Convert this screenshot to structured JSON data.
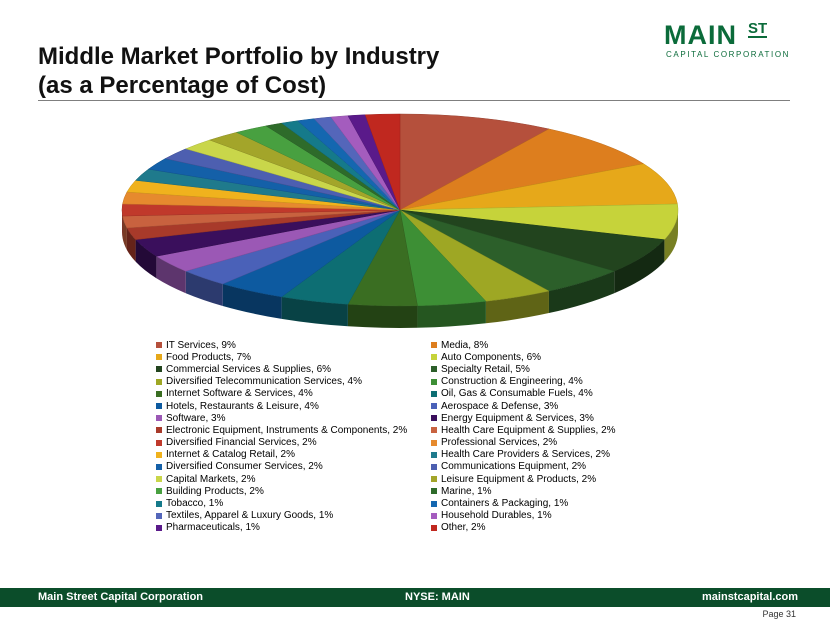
{
  "header": {
    "title_line1": "Middle Market Portfolio by Industry",
    "title_line2": "(as a Percentage of Cost)"
  },
  "logo": {
    "main": "MAIN",
    "superscript": "ST",
    "subtitle": "CAPITAL CORPORATION",
    "color": "#0b6b3a"
  },
  "footer": {
    "left": "Main Street Capital Corporation",
    "center": "NYSE: MAIN",
    "right": "mainstcapital.com",
    "background": "#0b4d2a"
  },
  "page_label": "Page  31",
  "chart_data": {
    "type": "pie",
    "style": "3D tilted pie, no title, legend below in two columns",
    "legend_position": "bottom",
    "slices": [
      {
        "label": "IT Services, 9%",
        "value": 9,
        "color": "#b5503c"
      },
      {
        "label": "Media, 8%",
        "value": 8,
        "color": "#dd7e1e"
      },
      {
        "label": "Food Products, 7%",
        "value": 7,
        "color": "#e6a81a"
      },
      {
        "label": "Auto Components, 6%",
        "value": 6,
        "color": "#c6d33a"
      },
      {
        "label": "Commercial Services & Supplies, 6%",
        "value": 6,
        "color": "#22441e"
      },
      {
        "label": "Specialty Retail, 5%",
        "value": 5,
        "color": "#2c5f2a"
      },
      {
        "label": "Diversified Telecommunication Services, 4%",
        "value": 4,
        "color": "#9ea724"
      },
      {
        "label": "Construction & Engineering, 4%",
        "value": 4,
        "color": "#3d8f35"
      },
      {
        "label": "Internet Software & Services, 4%",
        "value": 4,
        "color": "#3a6e22"
      },
      {
        "label": "Oil, Gas & Consumable Fuels, 4%",
        "value": 4,
        "color": "#0d6e73"
      },
      {
        "label": "Hotels, Restaurants & Leisure, 4%",
        "value": 4,
        "color": "#0d5aa0"
      },
      {
        "label": "Aerospace & Defense, 3%",
        "value": 3,
        "color": "#4a61b8"
      },
      {
        "label": "Software, 3%",
        "value": 3,
        "color": "#9b58b5"
      },
      {
        "label": "Energy Equipment & Services, 3%",
        "value": 3,
        "color": "#3a0f5c"
      },
      {
        "label": "Electronic Equipment, Instruments & Components, 2%",
        "value": 2,
        "color": "#a83a2a"
      },
      {
        "label": "Health Care Equipment & Supplies, 2%",
        "value": 2,
        "color": "#c8623f"
      },
      {
        "label": "Diversified Financial Services, 2%",
        "value": 2,
        "color": "#c0392b"
      },
      {
        "label": "Professional Services, 2%",
        "value": 2,
        "color": "#e68a2e"
      },
      {
        "label": "Internet & Catalog Retail, 2%",
        "value": 2,
        "color": "#f0b21d"
      },
      {
        "label": "Health Care Providers & Services, 2%",
        "value": 2,
        "color": "#1f7a8c"
      },
      {
        "label": "Diversified Consumer Services, 2%",
        "value": 2,
        "color": "#1460a8"
      },
      {
        "label": "Communications Equipment, 2%",
        "value": 2,
        "color": "#4d5fb0"
      },
      {
        "label": "Capital Markets, 2%",
        "value": 2,
        "color": "#c9d64a"
      },
      {
        "label": "Leisure Equipment & Products, 2%",
        "value": 2,
        "color": "#a3a52a"
      },
      {
        "label": "Building Products, 2%",
        "value": 2,
        "color": "#48a040"
      },
      {
        "label": "Marine, 1%",
        "value": 1,
        "color": "#2e6b2a"
      },
      {
        "label": "Tobacco, 1%",
        "value": 1,
        "color": "#157a8a"
      },
      {
        "label": "Containers & Packaging, 1%",
        "value": 1,
        "color": "#1467b0"
      },
      {
        "label": "Textiles, Apparel & Luxury Goods, 1%",
        "value": 1,
        "color": "#5466ba"
      },
      {
        "label": "Household Durables, 1%",
        "value": 1,
        "color": "#a45cbe"
      },
      {
        "label": "Pharmaceuticals, 1%",
        "value": 1,
        "color": "#5a1a8a"
      },
      {
        "label": "Other, 2%",
        "value": 2,
        "color": "#c0281f"
      }
    ]
  }
}
